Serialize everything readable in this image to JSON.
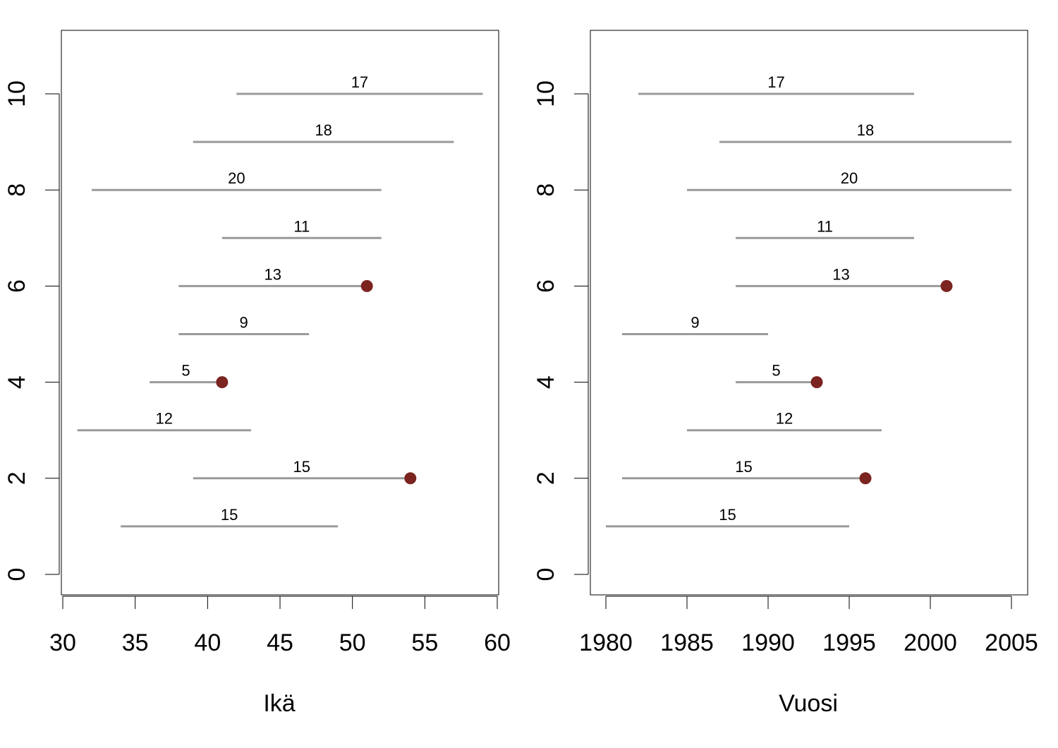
{
  "chart_data": [
    {
      "type": "segment",
      "xlabel": "Ikä",
      "xlim": [
        30,
        60
      ],
      "ylim": [
        0,
        10
      ],
      "xticks": [
        "30",
        "35",
        "40",
        "45",
        "50",
        "55",
        "60"
      ],
      "yticks": [
        "0",
        "2",
        "4",
        "6",
        "8",
        "10"
      ],
      "event_color": "#7b2420",
      "segment_color": "#9a9a9a",
      "segments": [
        {
          "y": 10,
          "x_start": 42,
          "x_end": 59,
          "label": "17",
          "event": false
        },
        {
          "y": 9,
          "x_start": 39,
          "x_end": 57,
          "label": "18",
          "event": false
        },
        {
          "y": 8,
          "x_start": 32,
          "x_end": 52,
          "label": "20",
          "event": false
        },
        {
          "y": 7,
          "x_start": 41,
          "x_end": 52,
          "label": "11",
          "event": false
        },
        {
          "y": 6,
          "x_start": 38,
          "x_end": 51,
          "label": "13",
          "event": true
        },
        {
          "y": 5,
          "x_start": 38,
          "x_end": 47,
          "label": "9",
          "event": false
        },
        {
          "y": 4,
          "x_start": 36,
          "x_end": 41,
          "label": "5",
          "event": true
        },
        {
          "y": 3,
          "x_start": 31,
          "x_end": 43,
          "label": "12",
          "event": false
        },
        {
          "y": 2,
          "x_start": 39,
          "x_end": 54,
          "label": "15",
          "event": true
        },
        {
          "y": 1,
          "x_start": 34,
          "x_end": 49,
          "label": "15",
          "event": false
        }
      ]
    },
    {
      "type": "segment",
      "xlabel": "Vuosi",
      "xlim": [
        1980,
        2005
      ],
      "ylim": [
        0,
        10
      ],
      "xticks": [
        "1980",
        "1985",
        "1990",
        "1995",
        "2000",
        "2005"
      ],
      "yticks": [
        "0",
        "2",
        "4",
        "6",
        "8",
        "10"
      ],
      "event_color": "#7b2420",
      "segment_color": "#9a9a9a",
      "segments": [
        {
          "y": 10,
          "x_start": 1982,
          "x_end": 1999,
          "label": "17",
          "event": false
        },
        {
          "y": 9,
          "x_start": 1987,
          "x_end": 2005,
          "label": "18",
          "event": false
        },
        {
          "y": 8,
          "x_start": 1985,
          "x_end": 2005,
          "label": "20",
          "event": false
        },
        {
          "y": 7,
          "x_start": 1988,
          "x_end": 1999,
          "label": "11",
          "event": false
        },
        {
          "y": 6,
          "x_start": 1988,
          "x_end": 2001,
          "label": "13",
          "event": true
        },
        {
          "y": 5,
          "x_start": 1981,
          "x_end": 1990,
          "label": "9",
          "event": false
        },
        {
          "y": 4,
          "x_start": 1988,
          "x_end": 1993,
          "label": "5",
          "event": true
        },
        {
          "y": 3,
          "x_start": 1985,
          "x_end": 1997,
          "label": "12",
          "event": false
        },
        {
          "y": 2,
          "x_start": 1981,
          "x_end": 1996,
          "label": "15",
          "event": true
        },
        {
          "y": 1,
          "x_start": 1980,
          "x_end": 1995,
          "label": "15",
          "event": false
        }
      ]
    }
  ]
}
